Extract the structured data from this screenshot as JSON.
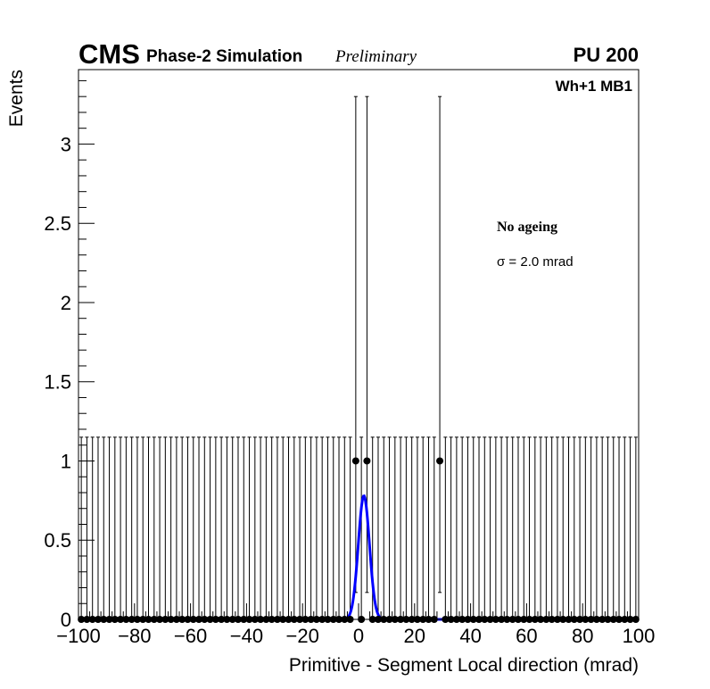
{
  "header": {
    "cms": "CMS",
    "simulation": "Phase-2 Simulation",
    "preliminary": "Preliminary",
    "pileup": "PU 200"
  },
  "chart_data": {
    "type": "scatter",
    "title": "Wh+1 MB1",
    "xlabel": "Primitive - Segment Local direction (mrad)",
    "ylabel": "Events",
    "xlim": [
      -100,
      100
    ],
    "ylim": [
      0,
      3.47
    ],
    "x_ticks": [
      "−100",
      "−80",
      "−60",
      "−40",
      "−20",
      "0",
      "20",
      "40",
      "60",
      "80",
      "100"
    ],
    "y_ticks": [
      "0",
      "0.5",
      "1",
      "1.5",
      "2",
      "2.5",
      "3"
    ],
    "bin_width": 2,
    "nonzero_bins": [
      {
        "x": -1,
        "y": 1
      },
      {
        "x": 3,
        "y": 1
      },
      {
        "x": 29,
        "y": 1
      }
    ],
    "error_one": [
      0.17,
      3.3
    ],
    "error_zero_upper": 1.15,
    "fit": {
      "type": "gaussian",
      "mean": 1.9,
      "sigma": 2.0,
      "amplitude": 0.78,
      "color": "#0000ff"
    },
    "annotations": {
      "ageing": "No ageing",
      "sigma": "σ = 2.0 mrad"
    },
    "grid": false
  }
}
